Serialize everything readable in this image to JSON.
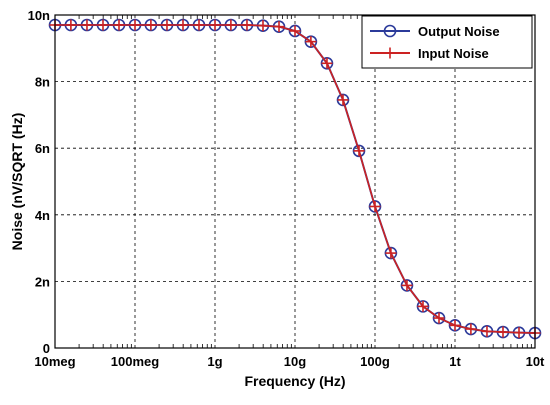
{
  "chart_data": {
    "type": "line",
    "title": "",
    "xlabel": "Frequency (Hz)",
    "ylabel": "Noise (nV/SQRT (Hz)",
    "x_scale": "log",
    "xlim": [
      10000000,
      10000000000000
    ],
    "ylim": [
      0,
      10
    ],
    "x_ticks": [
      {
        "value": 10000000,
        "label": "10meg"
      },
      {
        "value": 100000000,
        "label": "100meg"
      },
      {
        "value": 1000000000,
        "label": "1g"
      },
      {
        "value": 10000000000,
        "label": "10g"
      },
      {
        "value": 100000000000,
        "label": "100g"
      },
      {
        "value": 1000000000000,
        "label": "1t"
      },
      {
        "value": 10000000000000,
        "label": "10t"
      }
    ],
    "y_ticks": [
      {
        "value": 0,
        "label": "0"
      },
      {
        "value": 2,
        "label": "2n"
      },
      {
        "value": 4,
        "label": "4n"
      },
      {
        "value": 6,
        "label": "6n"
      },
      {
        "value": 8,
        "label": "8n"
      },
      {
        "value": 10,
        "label": "10n"
      }
    ],
    "grid": true,
    "legend_position": "top-right",
    "x": [
      10000000,
      15800000,
      25100000,
      39800000,
      63100000,
      100000000,
      158000000,
      251000000,
      398000000,
      631000000,
      1000000000,
      1580000000,
      2510000000,
      3980000000,
      6310000000,
      10000000000,
      15800000000,
      25100000000,
      39800000000,
      63100000000,
      100000000000,
      158000000000,
      251000000000,
      398000000000,
      631000000000,
      1000000000000,
      1580000000000,
      2510000000000,
      3980000000000,
      6310000000000,
      10000000000000
    ],
    "series": [
      {
        "name": "Output Noise",
        "color": "#2b3a9a",
        "marker": "circle",
        "values": [
          9.7,
          9.7,
          9.7,
          9.7,
          9.7,
          9.7,
          9.7,
          9.7,
          9.7,
          9.7,
          9.7,
          9.7,
          9.7,
          9.68,
          9.65,
          9.52,
          9.2,
          8.55,
          7.45,
          5.92,
          4.25,
          2.85,
          1.88,
          1.25,
          0.9,
          0.68,
          0.57,
          0.5,
          0.48,
          0.46,
          0.45
        ]
      },
      {
        "name": "Input Noise",
        "color": "#cc2222",
        "marker": "plus",
        "values": [
          9.7,
          9.7,
          9.7,
          9.7,
          9.7,
          9.7,
          9.7,
          9.7,
          9.7,
          9.7,
          9.7,
          9.7,
          9.7,
          9.68,
          9.65,
          9.52,
          9.2,
          8.55,
          7.45,
          5.92,
          4.25,
          2.85,
          1.88,
          1.25,
          0.9,
          0.68,
          0.57,
          0.5,
          0.48,
          0.46,
          0.45
        ]
      }
    ]
  }
}
